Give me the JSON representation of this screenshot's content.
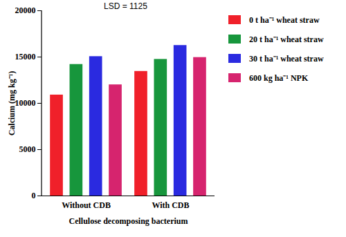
{
  "chart_data": {
    "type": "bar",
    "annotation": "LSD = 1125",
    "x_label": "Cellulose decomposing bacterium",
    "y_label": "Calcium (mg kg⁻¹)",
    "categories": [
      "Without CDB",
      "With CDB"
    ],
    "series": [
      {
        "name": "0 t ha⁻¹ wheat straw",
        "color": "#f0202a",
        "values": [
          10900,
          13450
        ]
      },
      {
        "name": "20 t ha⁻¹ wheat straw",
        "color": "#17963c",
        "values": [
          14200,
          14750
        ]
      },
      {
        "name": "30 t ha⁻¹ wheat straw",
        "color": "#2a2ae0",
        "values": [
          15050,
          16250
        ]
      },
      {
        "name": "600 kg ha⁻¹ NPK",
        "color": "#d6246e",
        "values": [
          12000,
          14950
        ]
      }
    ],
    "ylim": [
      0,
      20000
    ],
    "yticks": [
      0,
      5000,
      10000,
      15000,
      20000
    ],
    "legend": "right"
  }
}
